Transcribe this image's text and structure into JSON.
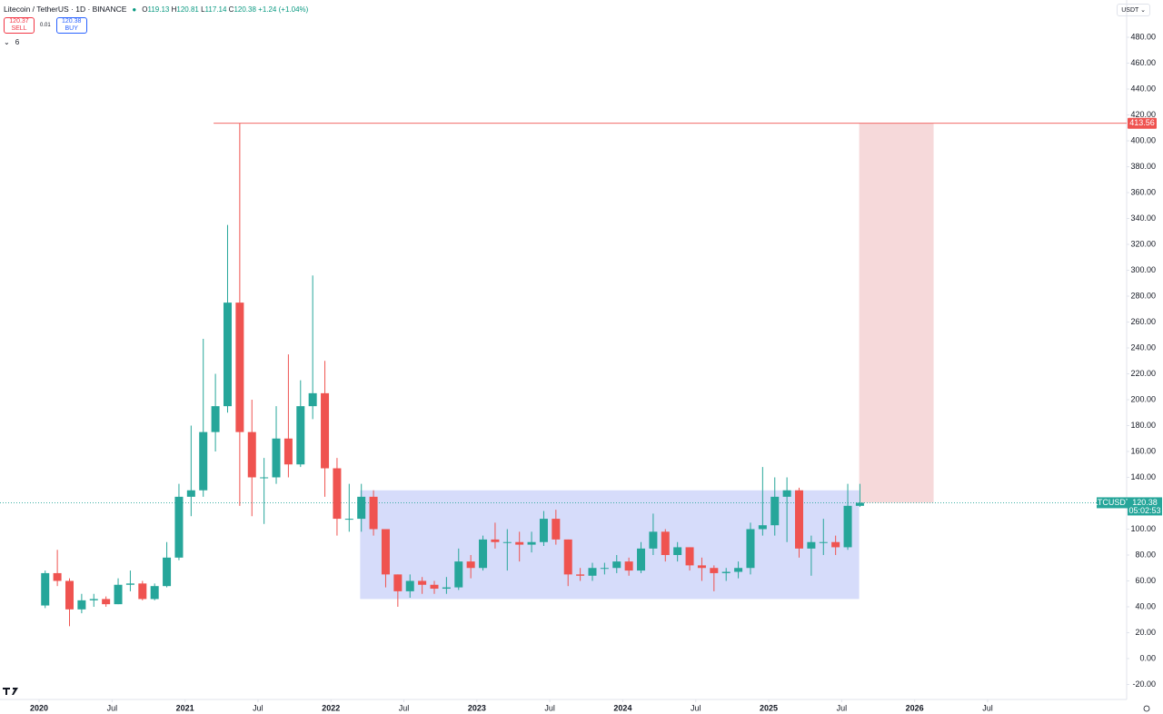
{
  "header": {
    "symbol": "Litecoin / TetherUS · 1D · BINANCE",
    "ohlc": [
      {
        "label": "O",
        "value": 119.13
      },
      {
        "label": "H",
        "value": 120.81
      },
      {
        "label": "L",
        "value": 117.14
      },
      {
        "label": "C",
        "value": 120.38
      }
    ],
    "change": "+1.24 (+1.04%)",
    "sell": {
      "price": 120.37,
      "label": "SELL"
    },
    "spread": 0.01,
    "buy": {
      "price": 120.38,
      "label": "BUY"
    },
    "indicators": 6,
    "currency": "USDT"
  },
  "chart_data": {
    "type": "candlestick",
    "x": [
      "2020-01",
      "2020-02",
      "2020-03",
      "2020-04",
      "2020-05",
      "2020-06",
      "2020-07",
      "2020-08",
      "2020-09",
      "2020-10",
      "2020-11",
      "2020-12",
      "2021-01",
      "2021-02",
      "2021-03",
      "2021-04",
      "2021-05",
      "2021-06",
      "2021-07",
      "2021-08",
      "2021-09",
      "2021-10",
      "2021-11",
      "2021-12",
      "2022-01",
      "2022-02",
      "2022-03",
      "2022-04",
      "2022-05",
      "2022-06",
      "2022-07",
      "2022-08",
      "2022-09",
      "2022-10",
      "2022-11",
      "2022-12",
      "2023-01",
      "2023-02",
      "2023-03",
      "2023-04",
      "2023-05",
      "2023-06",
      "2023-07",
      "2023-08",
      "2023-09",
      "2023-10",
      "2023-11",
      "2023-12",
      "2024-01",
      "2024-02",
      "2024-03",
      "2024-04",
      "2024-05",
      "2024-06",
      "2024-07",
      "2024-08",
      "2024-09",
      "2024-10",
      "2024-11",
      "2024-12",
      "2025-01",
      "2025-02",
      "2025-03",
      "2025-04",
      "2025-05",
      "2025-06",
      "2025-07",
      "2025-08"
    ],
    "open": [
      41,
      66,
      60,
      38,
      45,
      46,
      42,
      57,
      58,
      46,
      56,
      78,
      125,
      130,
      175,
      195,
      275,
      175,
      140,
      140,
      170,
      150,
      195,
      205,
      147,
      108,
      108,
      125,
      100,
      65,
      52,
      60,
      57,
      54,
      55,
      75,
      70,
      92,
      90,
      90,
      88,
      90,
      108,
      92,
      65,
      64,
      70,
      70,
      75,
      68,
      85,
      98,
      80,
      86,
      72,
      70,
      66,
      67,
      70,
      100,
      103,
      125,
      130,
      85,
      90,
      90,
      86,
      118
    ],
    "high": [
      68,
      84,
      62,
      50,
      50,
      48,
      62,
      68,
      60,
      58,
      90,
      135,
      180,
      247,
      220,
      335,
      413.56,
      200,
      155,
      195,
      235,
      215,
      296,
      230,
      155,
      135,
      135,
      130,
      100,
      65,
      65,
      63,
      60,
      63,
      85,
      80,
      95,
      105,
      100,
      98,
      98,
      114,
      115,
      92,
      70,
      74,
      74,
      80,
      78,
      90,
      112,
      100,
      90,
      86,
      78,
      72,
      70,
      75,
      105,
      148,
      140,
      140,
      132,
      95,
      108,
      95,
      135,
      135
    ],
    "low": [
      39,
      56,
      25,
      35,
      40,
      40,
      42,
      52,
      45,
      45,
      55,
      76,
      110,
      125,
      160,
      190,
      118,
      110,
      104,
      135,
      140,
      148,
      185,
      125,
      95,
      98,
      98,
      95,
      55,
      40,
      47,
      50,
      50,
      50,
      53,
      62,
      68,
      85,
      68,
      75,
      82,
      87,
      88,
      56,
      60,
      60,
      65,
      66,
      64,
      66,
      80,
      75,
      75,
      68,
      60,
      52,
      60,
      62,
      65,
      95,
      95,
      90,
      78,
      64,
      80,
      80,
      84,
      117.14
    ],
    "close": [
      66,
      60,
      38,
      45,
      46,
      42,
      57,
      58,
      46,
      56,
      78,
      125,
      130,
      175,
      195,
      275,
      175,
      140,
      140,
      170,
      150,
      195,
      205,
      147,
      108,
      108,
      125,
      100,
      65,
      52,
      60,
      57,
      54,
      55,
      75,
      70,
      92,
      90,
      90,
      88,
      90,
      108,
      92,
      65,
      64,
      70,
      70,
      75,
      68,
      85,
      98,
      80,
      86,
      72,
      70,
      66,
      67,
      70,
      100,
      103,
      125,
      130,
      85,
      90,
      90,
      86,
      118,
      120.38
    ],
    "up_color": "#26a69a",
    "down_color": "#ef5350",
    "xlim": [
      2019.732,
      2027.453
    ],
    "ylim": [
      -31.6,
      508.8
    ],
    "xticks": [
      {
        "value": 2020,
        "label": "2020"
      },
      {
        "value": 2020.5,
        "label": "Jul"
      },
      {
        "value": 2021,
        "label": "2021"
      },
      {
        "value": 2021.5,
        "label": "Jul"
      },
      {
        "value": 2022,
        "label": "2022"
      },
      {
        "value": 2022.5,
        "label": "Jul"
      },
      {
        "value": 2023,
        "label": "2023"
      },
      {
        "value": 2023.5,
        "label": "Jul"
      },
      {
        "value": 2024,
        "label": "2024"
      },
      {
        "value": 2024.5,
        "label": "Jul"
      },
      {
        "value": 2025,
        "label": "2025"
      },
      {
        "value": 2025.5,
        "label": "Jul"
      },
      {
        "value": 2026,
        "label": "2026"
      },
      {
        "value": 2026.5,
        "label": "Jul"
      }
    ],
    "yticks": [
      {
        "value": -20,
        "label": "-20.00"
      },
      {
        "value": 0,
        "label": "0.00"
      },
      {
        "value": 20,
        "label": "20.00"
      },
      {
        "value": 40,
        "label": "40.00"
      },
      {
        "value": 60,
        "label": "60.00"
      },
      {
        "value": 80,
        "label": "80.00"
      },
      {
        "value": 100,
        "label": "100.00"
      },
      {
        "value": 120,
        "label": "120.00"
      },
      {
        "value": 140,
        "label": "140.00"
      },
      {
        "value": 160,
        "label": "160.00"
      },
      {
        "value": 180,
        "label": "180.00"
      },
      {
        "value": 200,
        "label": "200.00"
      },
      {
        "value": 220,
        "label": "220.00"
      },
      {
        "value": 240,
        "label": "240.00"
      },
      {
        "value": 260,
        "label": "260.00"
      },
      {
        "value": 280,
        "label": "280.00"
      },
      {
        "value": 300,
        "label": "300.00"
      },
      {
        "value": 320,
        "label": "320.00"
      },
      {
        "value": 340,
        "label": "340.00"
      },
      {
        "value": 360,
        "label": "360.00"
      },
      {
        "value": 380,
        "label": "380.00"
      },
      {
        "value": 400,
        "label": "400.00"
      },
      {
        "value": 420,
        "label": "420.00"
      },
      {
        "value": 440,
        "label": "440.00"
      },
      {
        "value": 460,
        "label": "460.00"
      },
      {
        "value": 480,
        "label": "480.00"
      }
    ],
    "zones": [
      {
        "from": 2022.2,
        "to": 2025.62,
        "low": 46,
        "high": 130,
        "color": "#d6dcfa"
      },
      {
        "from": 2025.62,
        "to": 2026.13,
        "low": 120.38,
        "high": 413.56,
        "color": "#f6d9da"
      }
    ],
    "level": {
      "from": 2021.196,
      "value": 413.56,
      "color": "#ef5350"
    },
    "last": {
      "symbol": "LTCUSDT",
      "value": 120.38,
      "countdown": "05:02:53",
      "color": "#26a69a"
    }
  }
}
